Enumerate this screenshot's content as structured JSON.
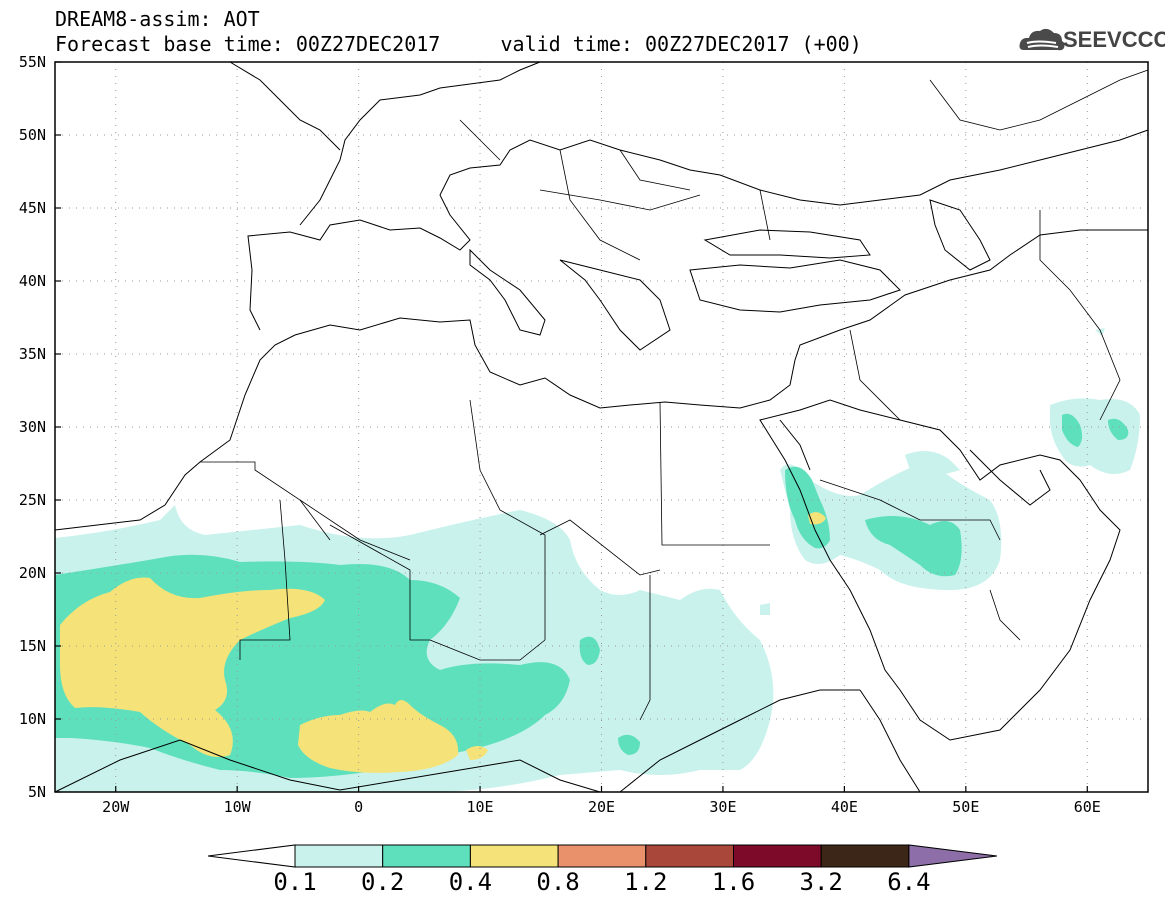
{
  "title_line1": "DREAM8-assim: AOT",
  "title_line2": "Forecast base time: 00Z27DEC2017     valid time: 00Z27DEC2017 (+00)",
  "logo_text": "SEEVCCC",
  "map": {
    "lon_range": [
      -25,
      65
    ],
    "lat_range": [
      5,
      55
    ],
    "lat_ticks": [
      "55N",
      "50N",
      "45N",
      "40N",
      "35N",
      "30N",
      "25N",
      "20N",
      "15N",
      "10N",
      "5N"
    ],
    "lon_ticks": [
      "20W",
      "10W",
      "0",
      "10E",
      "20E",
      "30E",
      "40E",
      "50E",
      "60E"
    ]
  },
  "colorbar": {
    "labels": [
      "0.1",
      "0.2",
      "0.4",
      "0.8",
      "1.2",
      "1.6",
      "3.2",
      "6.4"
    ],
    "colors": [
      "#ffffff",
      "#c9f2ec",
      "#5fe0bc",
      "#f5e37a",
      "#e8916a",
      "#a9473a",
      "#7d0a28",
      "#3b2617",
      "#8e6ea8"
    ]
  }
}
